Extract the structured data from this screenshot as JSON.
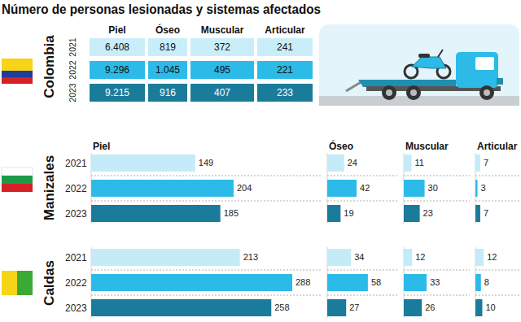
{
  "title": "Número de personas lesionadas y sistemas afectados",
  "colombia_table": {
    "region": "Colombia",
    "columns": [
      "Piel",
      "Óseo",
      "Muscular",
      "Articular"
    ],
    "rows": [
      {
        "year": "2021",
        "cells": [
          "6.408",
          "819",
          "372",
          "241"
        ]
      },
      {
        "year": "2022",
        "cells": [
          "9.296",
          "1.045",
          "495",
          "221"
        ]
      },
      {
        "year": "2023",
        "cells": [
          "9.215",
          "916",
          "407",
          "233"
        ]
      }
    ]
  },
  "region_labels": [
    "Manizales",
    "Caldas"
  ],
  "chart_data": [
    {
      "type": "bar",
      "orientation": "horizontal",
      "title": "Piel",
      "categories": [
        "2021",
        "2022",
        "2023"
      ],
      "values": [
        149,
        204,
        185
      ],
      "colors": [
        "#c4ebf8",
        "#2cbbe8",
        "#1b7b9b"
      ],
      "xlim": [
        0,
        330
      ],
      "tick_labels": "y",
      "data_labels": true
    },
    {
      "type": "bar",
      "orientation": "horizontal",
      "title": "Óseo",
      "categories": [
        "2021",
        "2022",
        "2023"
      ],
      "values": [
        24,
        42,
        19
      ],
      "colors": [
        "#c4ebf8",
        "#2cbbe8",
        "#1b7b9b"
      ],
      "xlim": [
        0,
        100
      ],
      "tick_labels": false,
      "data_labels": true
    },
    {
      "type": "bar",
      "orientation": "horizontal",
      "title": "Muscular",
      "categories": [
        "2021",
        "2022",
        "2023"
      ],
      "values": [
        11,
        30,
        23
      ],
      "colors": [
        "#c4ebf8",
        "#2cbbe8",
        "#1b7b9b"
      ],
      "xlim": [
        0,
        95
      ],
      "tick_labels": false,
      "data_labels": true
    },
    {
      "type": "bar",
      "orientation": "horizontal",
      "title": "Articular",
      "categories": [
        "2021",
        "2022",
        "2023"
      ],
      "values": [
        7,
        3,
        7
      ],
      "colors": [
        "#c4ebf8",
        "#2cbbe8",
        "#1b7b9b"
      ],
      "xlim": [
        0,
        65
      ],
      "tick_labels": false,
      "data_labels": true
    },
    {
      "type": "bar",
      "orientation": "horizontal",
      "categories": [
        "2021",
        "2022",
        "2023"
      ],
      "values": [
        213,
        288,
        258
      ],
      "colors": [
        "#c4ebf8",
        "#2cbbe8",
        "#1b7b9b"
      ],
      "xlim": [
        0,
        330
      ],
      "tick_labels": "y",
      "data_labels": true
    },
    {
      "type": "bar",
      "orientation": "horizontal",
      "categories": [
        "2021",
        "2022",
        "2023"
      ],
      "values": [
        34,
        58,
        27
      ],
      "colors": [
        "#c4ebf8",
        "#2cbbe8",
        "#1b7b9b"
      ],
      "xlim": [
        0,
        100
      ],
      "tick_labels": false,
      "data_labels": true
    },
    {
      "type": "bar",
      "orientation": "horizontal",
      "categories": [
        "2021",
        "2022",
        "2023"
      ],
      "values": [
        12,
        33,
        26
      ],
      "colors": [
        "#c4ebf8",
        "#2cbbe8",
        "#1b7b9b"
      ],
      "xlim": [
        0,
        95
      ],
      "tick_labels": false,
      "data_labels": true
    },
    {
      "type": "bar",
      "orientation": "horizontal",
      "categories": [
        "2021",
        "2022",
        "2023"
      ],
      "values": [
        12,
        8,
        10
      ],
      "colors": [
        "#c4ebf8",
        "#2cbbe8",
        "#1b7b9b"
      ],
      "xlim": [
        0,
        65
      ],
      "tick_labels": false,
      "data_labels": true
    }
  ]
}
